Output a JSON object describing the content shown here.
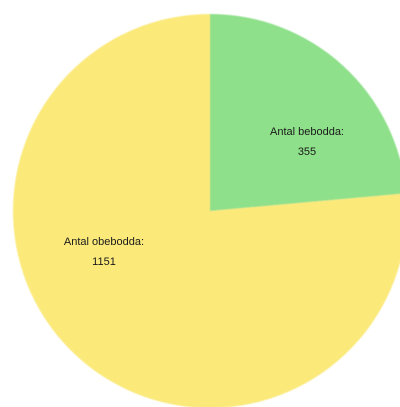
{
  "chart_data": {
    "type": "pie",
    "slices": [
      {
        "label": "Antal bebodda:",
        "value": 355,
        "value_text": "355",
        "color": "#8ee08a"
      },
      {
        "label": "Antal obebodda:",
        "value": 1151,
        "value_text": "1151",
        "color": "#fbe97a"
      }
    ],
    "start_angle": "12 o'clock",
    "direction": "clockwise",
    "legend": "none",
    "data_labels": "inside"
  }
}
